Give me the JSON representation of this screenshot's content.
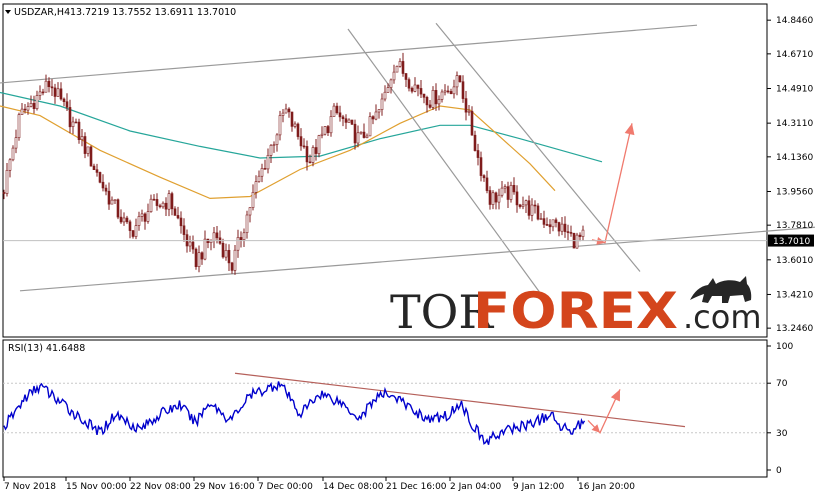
{
  "header": {
    "symbol": "USDZAR,H4",
    "ohlc": "13.7219 13.7552 13.6911 13.7010"
  },
  "price_tag": "13.7010",
  "logo": {
    "part1": "TOR",
    "part2": "FOREX",
    "part3": ".com"
  },
  "colors": {
    "background": "#ffffff",
    "price_line": "#7f1d1d",
    "ma_slow": "#26a69a",
    "ma_fast": "#e0a030",
    "trend_line": "#9a9a9a",
    "forecast_arrow": "#f07a6e",
    "rsi_line": "#0000cc",
    "rsi_trend": "#b5605a",
    "logo_dark": "#262626",
    "logo_accent": "#d4451c"
  },
  "chart_data": [
    {
      "type": "candlestick",
      "title": "USDZAR,H4",
      "y_ticks": [
        "14.8460",
        "14.6710",
        "14.4910",
        "14.3110",
        "14.1360",
        "13.9560",
        "13.7810",
        "13.6010",
        "13.4210",
        "13.2460"
      ],
      "ylim": [
        13.2,
        14.93
      ],
      "last_price": 13.701,
      "x_ticks": [
        "7 Nov 2018",
        "15 Nov 00:00",
        "22 Nov 08:00",
        "29 Nov 16:00",
        "7 Dec 00:00",
        "14 Dec 08:00",
        "21 Dec 16:00",
        "2 Jan 04:00",
        "9 Jan 12:00",
        "16 Jan 20:00"
      ],
      "close_anchors": [
        [
          0,
          13.88
        ],
        [
          20,
          14.35
        ],
        [
          50,
          14.52
        ],
        [
          80,
          14.24
        ],
        [
          105,
          13.96
        ],
        [
          130,
          13.74
        ],
        [
          150,
          13.87
        ],
        [
          170,
          13.91
        ],
        [
          195,
          13.59
        ],
        [
          215,
          13.74
        ],
        [
          232,
          13.57
        ],
        [
          255,
          13.97
        ],
        [
          285,
          14.38
        ],
        [
          310,
          14.12
        ],
        [
          335,
          14.37
        ],
        [
          360,
          14.22
        ],
        [
          380,
          14.38
        ],
        [
          395,
          14.63
        ],
        [
          410,
          14.53
        ],
        [
          430,
          14.43
        ],
        [
          460,
          14.53
        ],
        [
          478,
          14.13
        ],
        [
          490,
          13.92
        ],
        [
          510,
          13.95
        ],
        [
          540,
          13.82
        ],
        [
          560,
          13.77
        ],
        [
          575,
          13.7
        ],
        [
          585,
          13.72
        ]
      ],
      "moving_averages": [
        {
          "id": "ma_slow",
          "points": [
            [
              0,
              14.47
            ],
            [
              60,
              14.4
            ],
            [
              130,
              14.27
            ],
            [
              200,
              14.19
            ],
            [
              260,
              14.13
            ],
            [
              320,
              14.14
            ],
            [
              380,
              14.23
            ],
            [
              440,
              14.3
            ],
            [
              470,
              14.3
            ],
            [
              520,
              14.23
            ],
            [
              602,
              14.11
            ]
          ]
        },
        {
          "id": "ma_fast",
          "points": [
            [
              0,
              14.4
            ],
            [
              40,
              14.35
            ],
            [
              100,
              14.17
            ],
            [
              160,
              14.03
            ],
            [
              210,
              13.92
            ],
            [
              250,
              13.93
            ],
            [
              300,
              14.07
            ],
            [
              350,
              14.17
            ],
            [
              400,
              14.31
            ],
            [
              440,
              14.4
            ],
            [
              470,
              14.38
            ],
            [
              500,
              14.24
            ],
            [
              530,
              14.1
            ],
            [
              555,
              13.96
            ]
          ]
        }
      ],
      "trend_lines": [
        [
          [
            0,
            14.52
          ],
          [
            697,
            14.82
          ]
        ],
        [
          [
            20,
            13.44
          ],
          [
            815,
            13.77
          ]
        ],
        [
          [
            348,
            14.8
          ],
          [
            540,
            13.43
          ]
        ],
        [
          [
            436,
            14.83
          ],
          [
            640,
            13.54
          ]
        ]
      ],
      "forecast_arrow": [
        [
          592,
          13.705
        ],
        [
          605,
          13.69
        ],
        [
          632,
          14.31
        ]
      ]
    },
    {
      "type": "line",
      "title": "RSI(13) 41.6488",
      "y_ticks": [
        "100",
        "70",
        "30",
        "0"
      ],
      "ylim": [
        0,
        100
      ],
      "last_value": 41.6488,
      "anchors": [
        [
          0,
          30
        ],
        [
          25,
          58
        ],
        [
          40,
          68
        ],
        [
          60,
          55
        ],
        [
          80,
          42
        ],
        [
          100,
          30
        ],
        [
          115,
          45
        ],
        [
          140,
          33
        ],
        [
          160,
          45
        ],
        [
          180,
          53
        ],
        [
          195,
          38
        ],
        [
          210,
          55
        ],
        [
          230,
          40
        ],
        [
          250,
          60
        ],
        [
          265,
          65
        ],
        [
          280,
          70
        ],
        [
          300,
          45
        ],
        [
          320,
          62
        ],
        [
          340,
          55
        ],
        [
          360,
          42
        ],
        [
          375,
          58
        ],
        [
          390,
          62
        ],
        [
          410,
          50
        ],
        [
          430,
          40
        ],
        [
          450,
          45
        ],
        [
          460,
          55
        ],
        [
          470,
          40
        ],
        [
          485,
          22
        ],
        [
          500,
          30
        ],
        [
          520,
          35
        ],
        [
          540,
          40
        ],
        [
          550,
          45
        ],
        [
          560,
          35
        ],
        [
          575,
          33
        ],
        [
          585,
          41.6
        ]
      ],
      "trend_line": [
        [
          235,
          78
        ],
        [
          685,
          35
        ]
      ],
      "forecast_arrow": [
        [
          588,
          40
        ],
        [
          600,
          30
        ],
        [
          620,
          65
        ]
      ]
    }
  ]
}
